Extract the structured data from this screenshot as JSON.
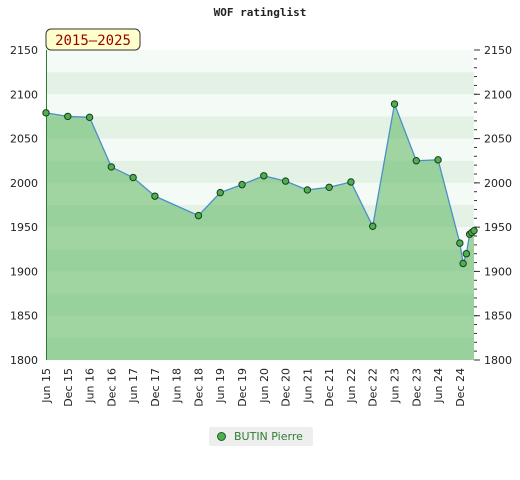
{
  "title": "WOF ratinglist",
  "period_badge": "2015–2025",
  "legend": {
    "label": "BUTIN Pierre"
  },
  "colors": {
    "line": "#4a90c8",
    "area": "#4caf50",
    "marker_fill": "#4caf50",
    "marker_stroke": "#1b3d1b",
    "badge_bg": "#ffffcc",
    "badge_text": "#990000"
  },
  "chart_data": {
    "type": "area",
    "title": "WOF ratinglist",
    "ylim": [
      1800,
      2150
    ],
    "yticks": [
      1800,
      1850,
      1900,
      1950,
      2000,
      2050,
      2100,
      2150
    ],
    "xlim": [
      0,
      39.3
    ],
    "xticks": [
      {
        "label": "Jun 15",
        "x": 0
      },
      {
        "label": "Dec 15",
        "x": 2
      },
      {
        "label": "Jun 16",
        "x": 4
      },
      {
        "label": "Dec 16",
        "x": 6
      },
      {
        "label": "Jun 17",
        "x": 8
      },
      {
        "label": "Dec 17",
        "x": 10
      },
      {
        "label": "Jun 18",
        "x": 12
      },
      {
        "label": "Dec 18",
        "x": 14
      },
      {
        "label": "Jun 19",
        "x": 16
      },
      {
        "label": "Dec 19",
        "x": 18
      },
      {
        "label": "Jun 20",
        "x": 20
      },
      {
        "label": "Dec 20",
        "x": 22
      },
      {
        "label": "Jun 21",
        "x": 24
      },
      {
        "label": "Dec 21",
        "x": 26
      },
      {
        "label": "Jun 22",
        "x": 28
      },
      {
        "label": "Dec 22",
        "x": 30
      },
      {
        "label": "Jun 23",
        "x": 32
      },
      {
        "label": "Dec 23",
        "x": 34
      },
      {
        "label": "Jun 24",
        "x": 36
      },
      {
        "label": "Dec 24",
        "x": 38
      }
    ],
    "series": [
      {
        "name": "BUTIN Pierre",
        "points": [
          [
            0,
            2079
          ],
          [
            2,
            2075
          ],
          [
            4,
            2074
          ],
          [
            6,
            2018
          ],
          [
            8,
            2006
          ],
          [
            10,
            1985
          ],
          [
            14,
            1963
          ],
          [
            16,
            1989
          ],
          [
            18,
            1998
          ],
          [
            20,
            2008
          ],
          [
            22,
            2002
          ],
          [
            24,
            1992
          ],
          [
            26,
            1995
          ],
          [
            28,
            2001
          ],
          [
            30,
            1951
          ],
          [
            32,
            2089
          ],
          [
            34,
            2025
          ],
          [
            36,
            2026
          ],
          [
            38,
            1932
          ],
          [
            38.3,
            1909
          ],
          [
            38.6,
            1920
          ],
          [
            38.9,
            1942
          ],
          [
            39.1,
            1944
          ],
          [
            39.3,
            1946
          ]
        ]
      }
    ]
  }
}
